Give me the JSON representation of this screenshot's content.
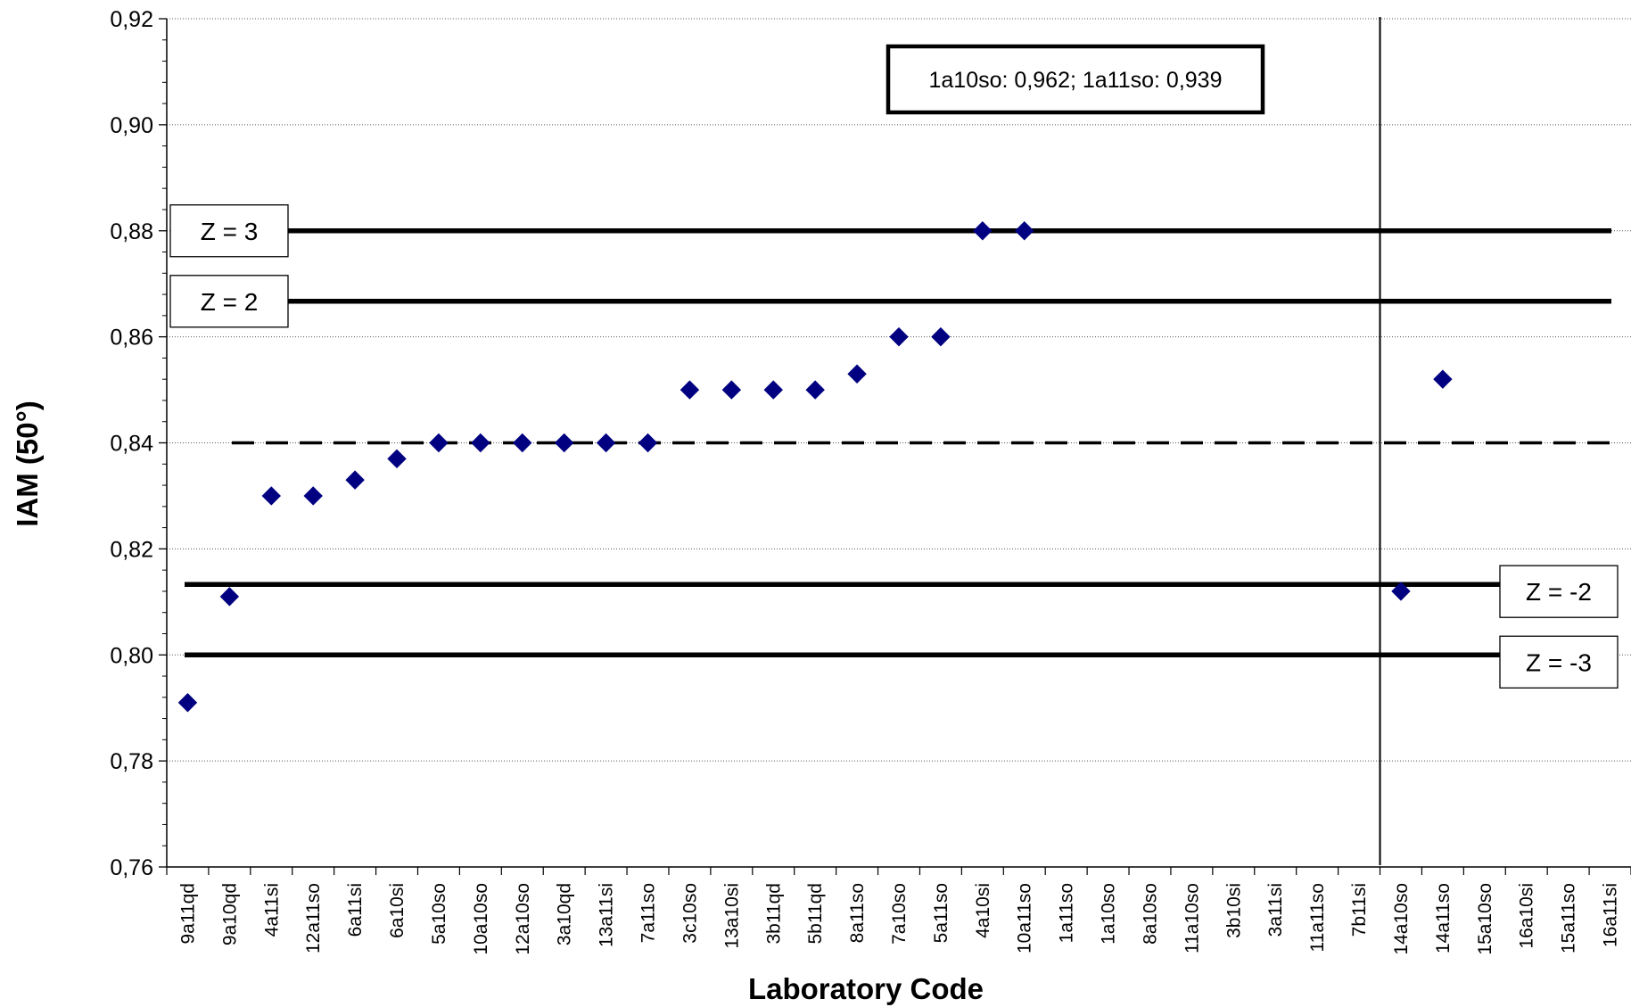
{
  "chart_data": {
    "type": "scatter",
    "xlabel": "Laboratory Code",
    "ylabel": "IAM (50°)",
    "ylim": [
      0.76,
      0.92
    ],
    "yticks": [
      "0,76",
      "0,78",
      "0,80",
      "0,82",
      "0,84",
      "0,86",
      "0,88",
      "0,90",
      "0,92"
    ],
    "grid": "horizontal dotted",
    "categories": [
      "9a11qd",
      "9a10qd",
      "4a11si",
      "12a11so",
      "6a11si",
      "6a10si",
      "5a10so",
      "10a10so",
      "12a10so",
      "3a10qd",
      "13a11si",
      "7a11so",
      "3c10so",
      "13a10si",
      "3b11qd",
      "5b11qd",
      "8a11so",
      "7a10so",
      "5a11so",
      "4a10si",
      "10a11so",
      "1a11so",
      "1a10so",
      "8a10so",
      "11a10so",
      "3b10si",
      "3a11si",
      "11a11so",
      "7b11si",
      "14a10so",
      "14a11so",
      "15a10so",
      "16a10si",
      "15a11so",
      "16a11si"
    ],
    "series": [
      {
        "marker": "diamond",
        "color": "#000080",
        "values": [
          0.791,
          0.811,
          0.83,
          0.83,
          0.833,
          0.837,
          0.84,
          0.84,
          0.84,
          0.84,
          0.84,
          0.84,
          0.85,
          0.85,
          0.85,
          0.85,
          0.853,
          0.86,
          0.86,
          0.88,
          0.88,
          null,
          null,
          null,
          null,
          null,
          null,
          null,
          null,
          0.812,
          0.852,
          null,
          null,
          null,
          null
        ]
      }
    ],
    "reference_lines": [
      {
        "label": "Z = 3",
        "value": 0.88,
        "style": "solid"
      },
      {
        "label": "Z = 2",
        "value": 0.8667,
        "style": "solid"
      },
      {
        "label": "",
        "value": 0.84,
        "style": "dashed"
      },
      {
        "label": "Z = -2",
        "value": 0.8133,
        "style": "solid"
      },
      {
        "label": "Z = -3",
        "value": 0.8,
        "style": "solid"
      }
    ],
    "separator_after": "7b11si",
    "annotation": "1a10so: 0,962; 1a11so: 0,939"
  }
}
